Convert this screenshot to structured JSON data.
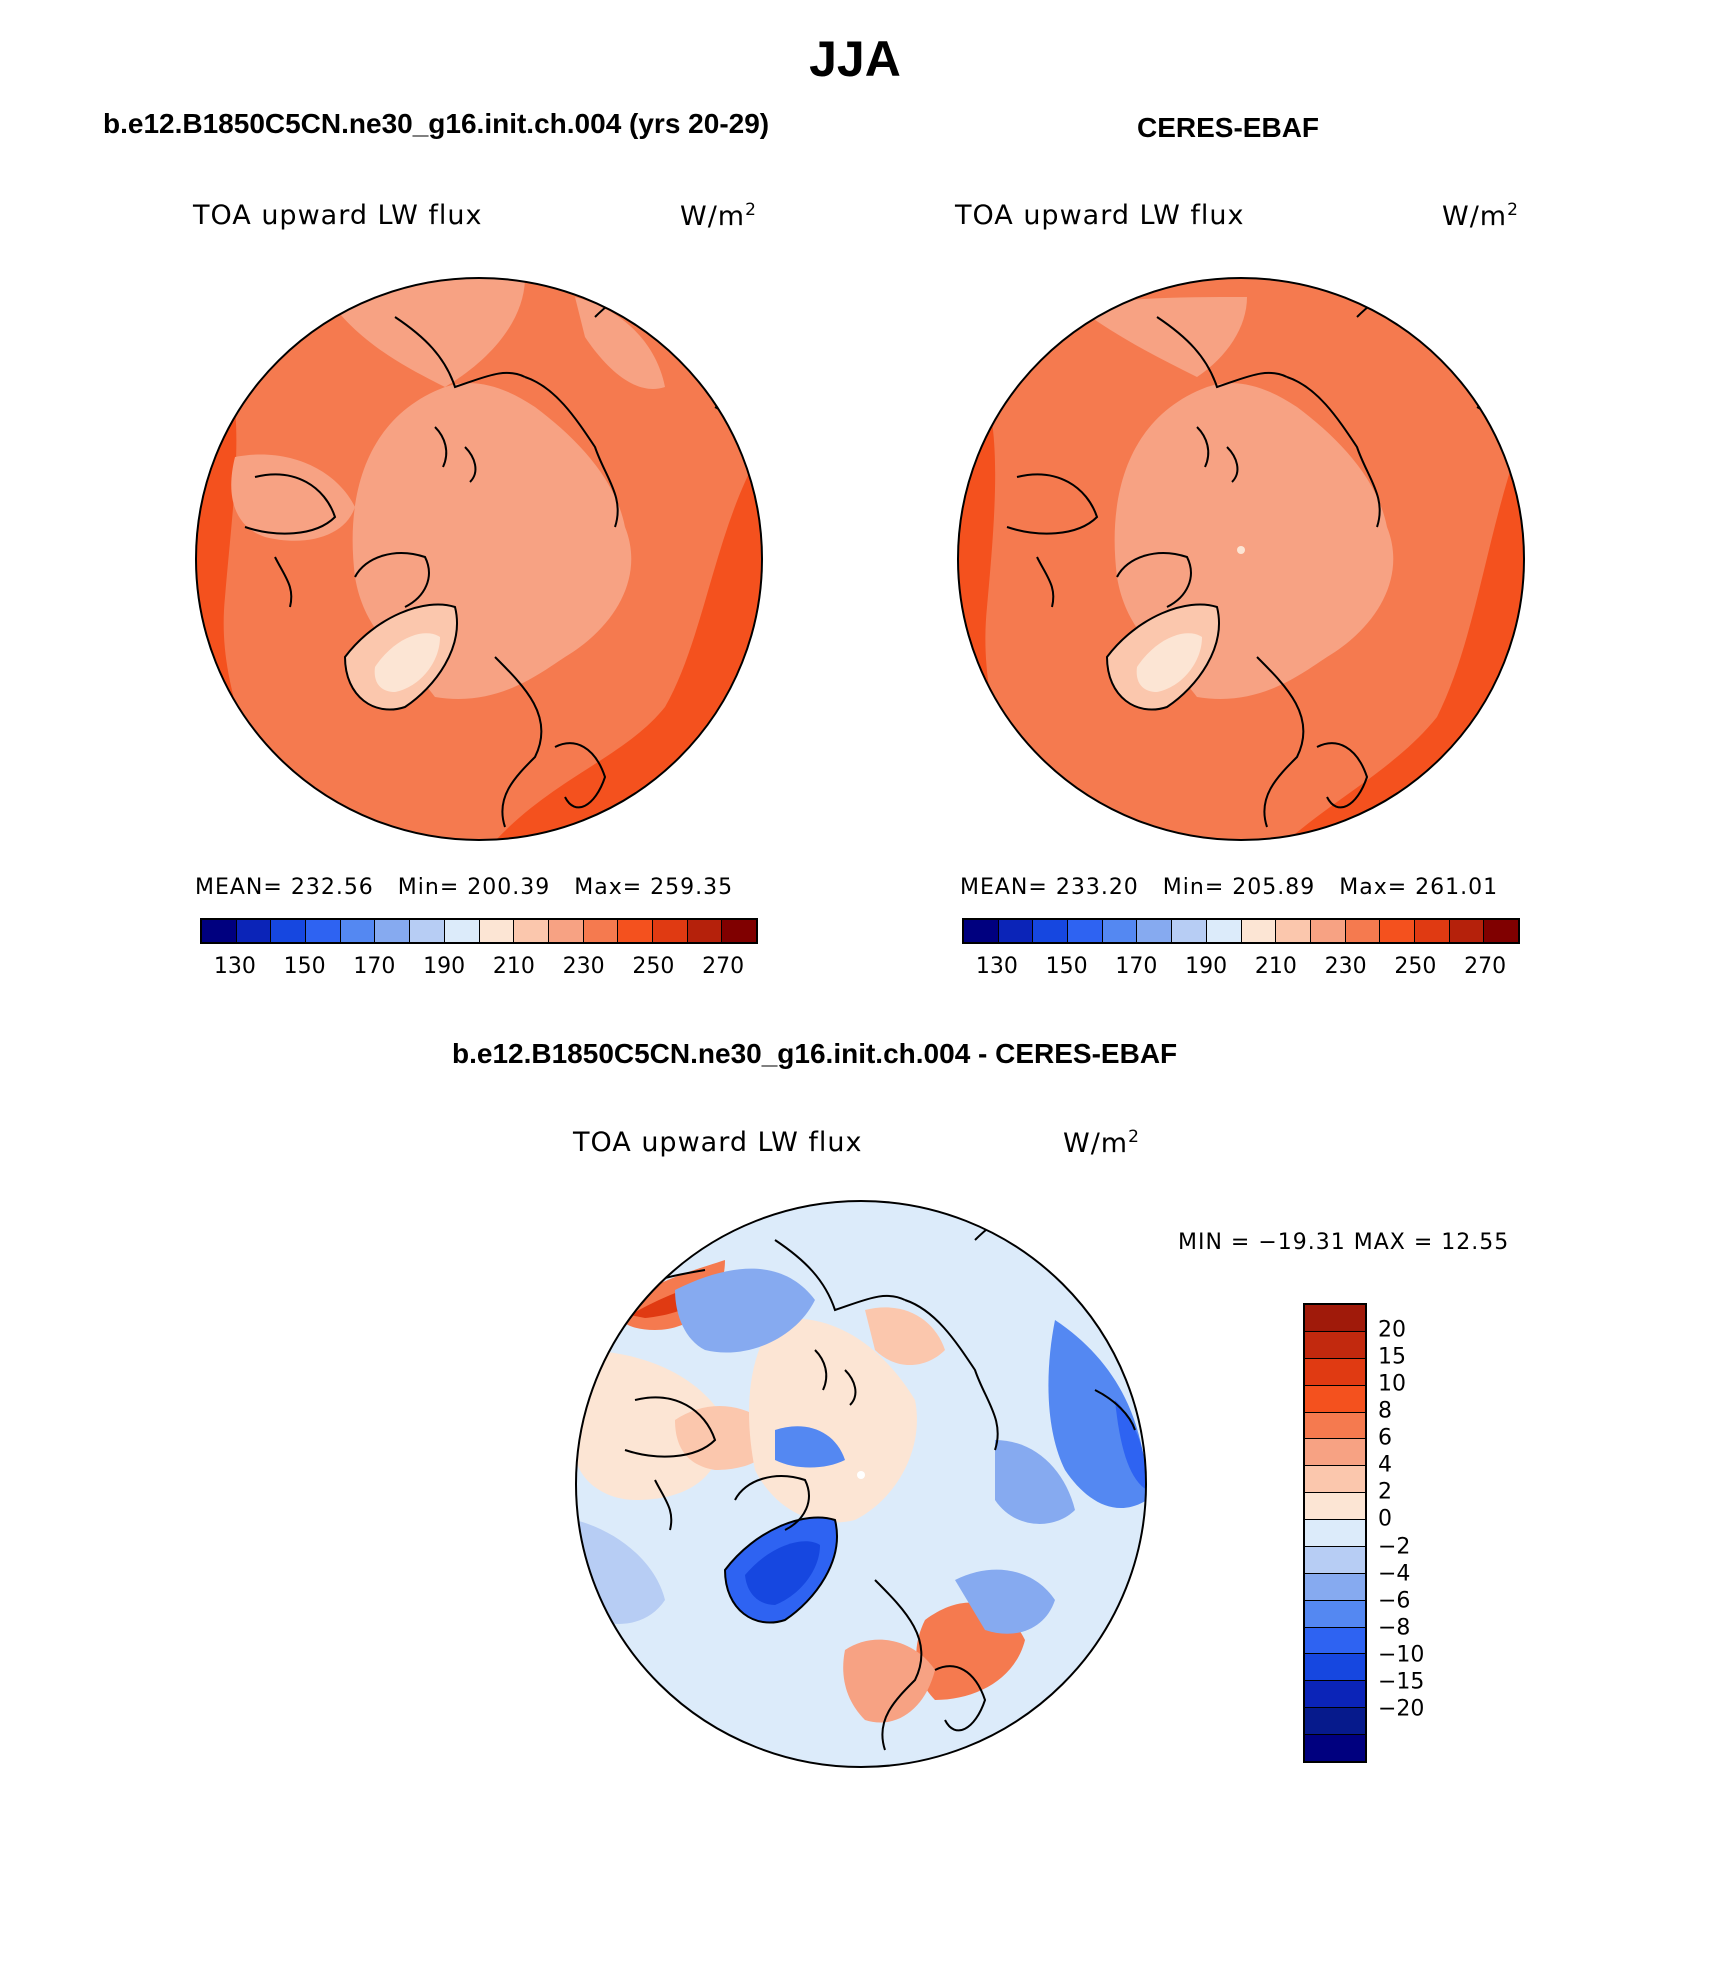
{
  "figure": {
    "title": "JJA"
  },
  "panels": [
    {
      "title": "b.e12.B1850C5CN.ne30_g16.init.ch.004 (yrs 20-29)",
      "variable": "TOA upward LW flux",
      "units_base": "W/m",
      "units_exp": "2",
      "stats": {
        "mean_label": "MEAN=",
        "mean": "232.56",
        "min_label": "Min=",
        "min": "200.39",
        "max_label": "Max=",
        "max": "259.35"
      },
      "palette": "main"
    },
    {
      "title": "CERES-EBAF",
      "variable": "TOA upward LW flux",
      "units_base": "W/m",
      "units_exp": "2",
      "stats": {
        "mean_label": "MEAN=",
        "mean": "233.20",
        "min_label": "Min=",
        "min": "205.89",
        "max_label": "Max=",
        "max": "261.01"
      },
      "palette": "main"
    },
    {
      "title": "b.e12.B1850C5CN.ne30_g16.init.ch.004 - CERES-EBAF",
      "variable": "TOA upward LW flux",
      "units_base": "W/m",
      "units_exp": "2",
      "stats": {
        "minmax_text": "MIN = −19.31 MAX =  12.55"
      },
      "palette": "diff"
    }
  ],
  "colorbars": {
    "main": {
      "colors": [
        "#00007f",
        "#0b24b8",
        "#1647e0",
        "#2e63f2",
        "#5488f2",
        "#86aaf0",
        "#b7cdf4",
        "#dcebfa",
        "#fce5d4",
        "#fbc7ad",
        "#f7a283",
        "#f57a4f",
        "#f4511e",
        "#e03a12",
        "#b5210b",
        "#800000"
      ],
      "tick_labels": [
        "130",
        "150",
        "170",
        "190",
        "210",
        "230",
        "250",
        "270"
      ]
    },
    "diff": {
      "colors_top_to_bottom": [
        "#a01a0a",
        "#c2290e",
        "#e03a12",
        "#f4511e",
        "#f57a4f",
        "#f7a283",
        "#fbc7ad",
        "#fce5d4",
        "#dcebfa",
        "#b7cdf4",
        "#86aaf0",
        "#5488f2",
        "#2e63f2",
        "#1647e0",
        "#0b24b8",
        "#061a8c",
        "#00007f"
      ],
      "tick_labels": [
        "20",
        "15",
        "10",
        "8",
        "6",
        "4",
        "2",
        "0",
        "−2",
        "−4",
        "−6",
        "−8",
        "−10",
        "−15",
        "−20"
      ]
    }
  }
}
